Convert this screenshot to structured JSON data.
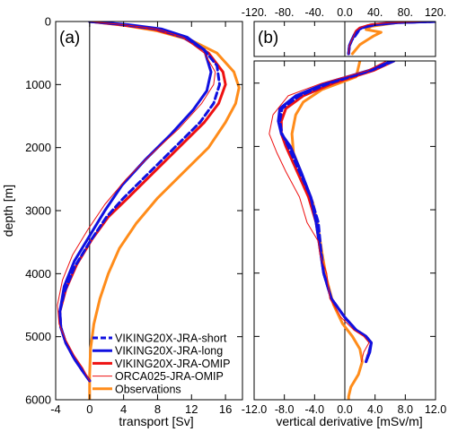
{
  "figure": {
    "panel_a_label": "(a)",
    "panel_b_label": "(b)",
    "legend": [
      {
        "name": "VIKING20X-JRA-short",
        "color": "#1010e0",
        "dash": true,
        "width": 3
      },
      {
        "name": "VIKING20X-JRA-long",
        "color": "#1010e0",
        "dash": false,
        "width": 3
      },
      {
        "name": "VIKING20X-JRA-OMIP",
        "color": "#ee1111",
        "dash": false,
        "width": 3
      },
      {
        "name": "ORCA025-JRA-OMIP",
        "color": "#ee1111",
        "dash": false,
        "width": 1
      },
      {
        "name": "Observations",
        "color": "#ff8c1a",
        "dash": false,
        "width": 3
      }
    ]
  },
  "chart_data": [
    {
      "type": "line",
      "panel": "(a)",
      "xlabel": "transport [Sv]",
      "ylabel": "depth [m]",
      "xlim": [
        -4,
        18
      ],
      "ylim": [
        6000,
        0
      ],
      "xticks": [
        "-4",
        "0",
        "4",
        "8",
        "12",
        "16"
      ],
      "yticks": [
        "0",
        "1000",
        "2000",
        "3000",
        "4000",
        "5000",
        "6000"
      ],
      "grid": false,
      "legend_position": "bottom-right",
      "series": [
        {
          "name": "VIKING20X-JRA-short",
          "x": [
            0,
            4,
            8,
            11,
            13.5,
            15,
            15.3,
            14.6,
            13,
            10,
            7,
            4,
            2,
            0,
            -1.8,
            -3,
            -3.5,
            -3.4,
            -2.8,
            -1.8,
            -0.8,
            0
          ],
          "y": [
            0,
            50,
            120,
            250,
            450,
            700,
            1000,
            1300,
            1600,
            2000,
            2400,
            2800,
            3100,
            3500,
            3900,
            4300,
            4600,
            4850,
            5100,
            5350,
            5550,
            5700
          ]
        },
        {
          "name": "VIKING20X-JRA-long",
          "x": [
            0,
            4.5,
            8.5,
            11.5,
            13.5,
            14.3,
            13.8,
            12.2,
            9.5,
            6.5,
            3.8,
            1.8,
            0,
            -1.8,
            -3,
            -3.5,
            -3.4,
            -2.8,
            -1.8,
            -0.8,
            0
          ],
          "y": [
            0,
            50,
            120,
            250,
            450,
            800,
            1100,
            1400,
            1800,
            2200,
            2600,
            3000,
            3400,
            3800,
            4200,
            4600,
            4850,
            5100,
            5350,
            5550,
            5700
          ]
        },
        {
          "name": "VIKING20X-JRA-OMIP",
          "x": [
            0,
            3.5,
            7.5,
            11,
            14,
            15.7,
            16,
            15.2,
            13.5,
            10.5,
            7.5,
            4.5,
            2.2,
            0.3,
            -1.5,
            -2.8,
            -3.5,
            -3.4,
            -2.8,
            -1.8,
            -0.8,
            0
          ],
          "y": [
            0,
            50,
            120,
            250,
            500,
            800,
            1000,
            1300,
            1600,
            2000,
            2400,
            2800,
            3100,
            3450,
            3850,
            4250,
            4600,
            4850,
            5100,
            5350,
            5550,
            5700
          ]
        },
        {
          "name": "ORCA025-JRA-OMIP",
          "x": [
            0,
            4,
            8,
            11,
            13.5,
            14.8,
            14.6,
            13.2,
            10.5,
            7.3,
            4.3,
            1.8,
            -0.2,
            -2,
            -3.2,
            -3.8,
            -3.6,
            -2.8,
            -1.8,
            -0.8,
            0
          ],
          "y": [
            0,
            50,
            120,
            250,
            500,
            800,
            1000,
            1300,
            1700,
            2100,
            2500,
            2900,
            3300,
            3700,
            4100,
            4500,
            4800,
            5050,
            5300,
            5500,
            5700
          ]
        },
        {
          "name": "Observations",
          "x": [
            0,
            4,
            8,
            12,
            15,
            17,
            17.6,
            17.2,
            16,
            14,
            11,
            8,
            5.5,
            3.5,
            2.2,
            1.2,
            0.5,
            0.1,
            0,
            0
          ],
          "y": [
            0,
            60,
            150,
            300,
            500,
            800,
            1050,
            1300,
            1600,
            2000,
            2400,
            2800,
            3200,
            3600,
            4000,
            4400,
            4800,
            5200,
            5600,
            6000
          ]
        }
      ]
    },
    {
      "type": "line",
      "panel": "(b)",
      "xlabel": "vertical derivative [mSv/m]",
      "xlim_upper": [
        -120,
        120
      ],
      "ylim_upper": [
        650,
        0
      ],
      "xticks_upper": [
        "-120.",
        "-80.",
        "-40.",
        "0.0",
        "40.",
        "80.",
        "120."
      ],
      "xlim_lower": [
        -12,
        12
      ],
      "ylim_lower": [
        6000,
        650
      ],
      "xticks_lower": [
        "-12.0",
        "-8.0",
        "-4.0",
        "0.0",
        "4.0",
        "8.0",
        "12.0"
      ],
      "grid": false,
      "series_upper": [
        {
          "name": "VIKING20X-JRA-short",
          "x": [
            120,
            70,
            40,
            22,
            18,
            14,
            9,
            6,
            5
          ],
          "y": [
            0,
            20,
            60,
            120,
            180,
            260,
            350,
            450,
            600
          ]
        },
        {
          "name": "VIKING20X-JRA-long",
          "x": [
            120,
            70,
            40,
            22,
            16,
            12,
            9,
            6,
            5
          ],
          "y": [
            0,
            20,
            60,
            120,
            180,
            260,
            350,
            450,
            600
          ]
        },
        {
          "name": "VIKING20X-JRA-OMIP",
          "x": [
            120,
            65,
            35,
            20,
            15,
            12,
            9,
            6,
            5
          ],
          "y": [
            0,
            20,
            60,
            120,
            180,
            260,
            350,
            450,
            600
          ]
        },
        {
          "name": "ORCA025-JRA-OMIP",
          "x": [
            110,
            60,
            30,
            20,
            14,
            12,
            9,
            6,
            5
          ],
          "y": [
            0,
            20,
            60,
            120,
            180,
            260,
            350,
            450,
            600
          ]
        },
        {
          "name": "Observations",
          "x": [
            80,
            60,
            35,
            28,
            48,
            38,
            30,
            20,
            10
          ],
          "y": [
            0,
            40,
            90,
            150,
            200,
            270,
            340,
            430,
            600
          ]
        }
      ],
      "series_lower": [
        {
          "name": "VIKING20X-JRA-short",
          "x": [
            6.5,
            3.5,
            -2,
            -6,
            -8.3,
            -8.6,
            -8.3,
            -7.5,
            -6,
            -4.5,
            -3.5,
            -3.2,
            -2.8,
            -1.8,
            0,
            1.5,
            2.8,
            3.5,
            3.2,
            2.8
          ],
          "y": [
            650,
            800,
            1000,
            1200,
            1400,
            1600,
            1800,
            2000,
            2400,
            2800,
            3200,
            3600,
            4000,
            4400,
            4700,
            4900,
            5000,
            5100,
            5250,
            5400
          ]
        },
        {
          "name": "VIKING20X-JRA-long",
          "x": [
            6.2,
            3.2,
            -2.5,
            -6.5,
            -8.6,
            -8.8,
            -8.4,
            -7.2,
            -5.8,
            -4.5,
            -3.8,
            -3.3,
            -2.8,
            -1.8,
            0,
            1.5,
            2.8,
            3.5,
            3.3,
            2.8
          ],
          "y": [
            650,
            800,
            1000,
            1200,
            1400,
            1600,
            1800,
            2000,
            2400,
            2800,
            3200,
            3600,
            4000,
            4400,
            4700,
            4900,
            5000,
            5100,
            5250,
            5400
          ]
        },
        {
          "name": "VIKING20X-JRA-OMIP",
          "x": [
            6.5,
            3.8,
            -1.5,
            -5.5,
            -7.8,
            -8.4,
            -8.4,
            -7.8,
            -6.3,
            -4.8,
            -3.8,
            -3.3,
            -2.8,
            -1.8,
            0,
            1.5,
            2.8,
            3.5,
            3.2,
            2.8
          ],
          "y": [
            650,
            800,
            1000,
            1200,
            1400,
            1600,
            1800,
            2000,
            2400,
            2800,
            3200,
            3600,
            4000,
            4400,
            4700,
            4900,
            5000,
            5100,
            5250,
            5400
          ]
        },
        {
          "name": "ORCA025-JRA-OMIP",
          "x": [
            5.5,
            3,
            -3,
            -7.5,
            -9.5,
            -10,
            -9,
            -7.8,
            -6,
            -5,
            -3.5,
            -3.3,
            -2.4,
            -2,
            -0.5,
            1.2,
            2.5,
            3.2,
            2.5,
            2.2
          ],
          "y": [
            650,
            800,
            1000,
            1200,
            1500,
            1800,
            2100,
            2400,
            2800,
            3200,
            3500,
            3700,
            4000,
            4400,
            4700,
            4900,
            5000,
            5100,
            5250,
            5400
          ]
        },
        {
          "name": "Observations",
          "x": [
            2,
            1.5,
            -3,
            -5.5,
            -6.5,
            -7,
            -6.8,
            -5.5,
            -4.2,
            -3.5,
            -3,
            -2.4,
            -1.5,
            -0.3,
            1,
            2,
            2.3,
            1.8,
            0.8,
            0.5,
            0.5
          ],
          "y": [
            650,
            900,
            1100,
            1300,
            1500,
            1800,
            2100,
            2500,
            2900,
            3300,
            3700,
            4100,
            4500,
            4800,
            5000,
            5200,
            5400,
            5600,
            5800,
            5950,
            6000
          ]
        }
      ]
    }
  ]
}
